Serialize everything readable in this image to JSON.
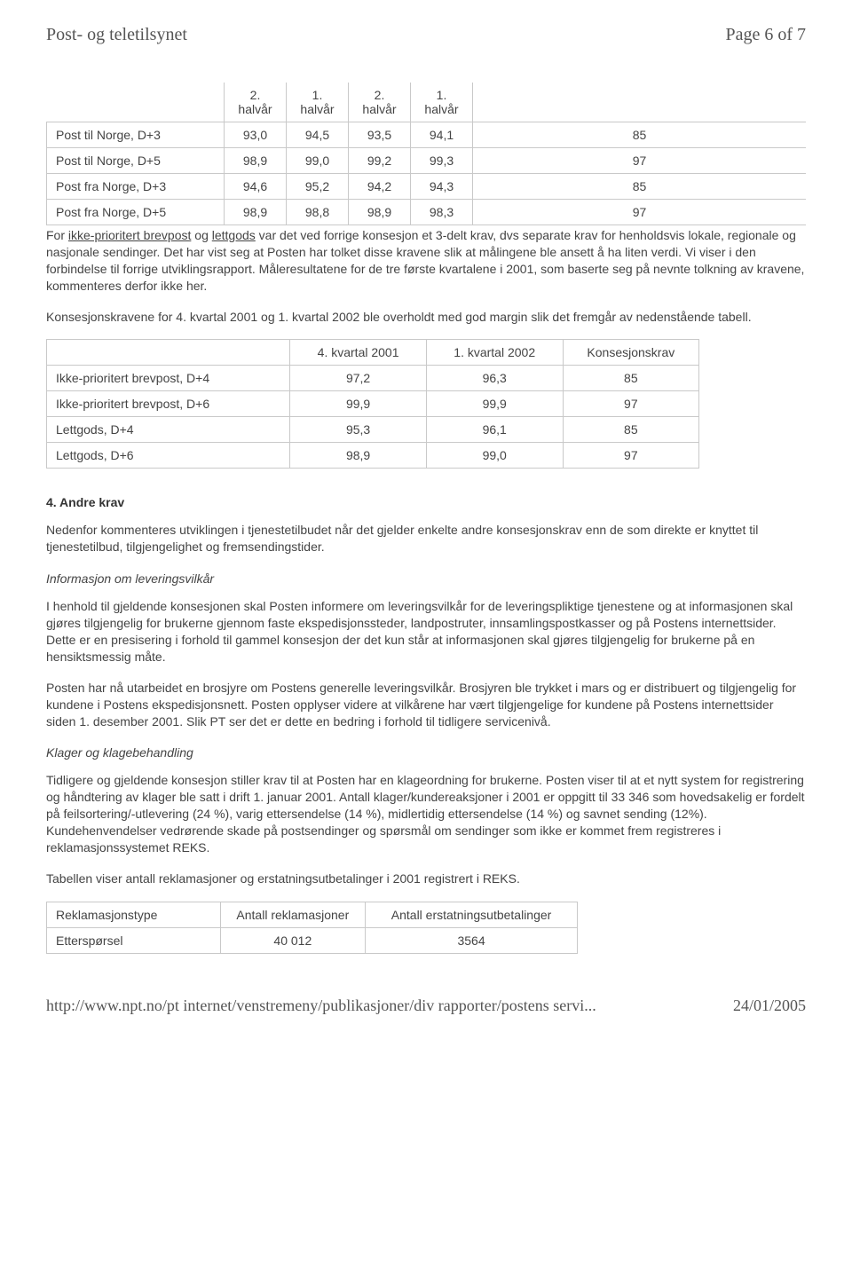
{
  "header": {
    "title": "Post- og teletilsynet",
    "page": "Page 6 of 7"
  },
  "table1": {
    "head": [
      "",
      "2. halvår",
      "1. halvår",
      "2. halvår",
      "1. halvår",
      ""
    ],
    "rows": [
      [
        "Post til Norge, D+3",
        "93,0",
        "94,5",
        "93,5",
        "94,1",
        "85"
      ],
      [
        "Post til Norge, D+5",
        "98,9",
        "99,0",
        "99,2",
        "99,3",
        "97"
      ],
      [
        "Post fra Norge, D+3",
        "94,6",
        "95,2",
        "94,2",
        "94,3",
        "85"
      ],
      [
        "Post fra Norge, D+5",
        "98,9",
        "98,8",
        "98,9",
        "98,3",
        "97"
      ]
    ]
  },
  "para1_a": "For ",
  "para1_u": "ikke-prioritert brevpost",
  "para1_b": " og ",
  "para1_u2": "lettgods",
  "para1_c": " var det ved forrige konsesjon et 3-delt krav, dvs separate krav for henholdsvis lokale, regionale og nasjonale sendinger. Det har vist seg at Posten har tolket disse kravene slik at målingene ble ansett å ha liten verdi. Vi viser i den forbindelse til forrige utviklingsrapport. Måleresultatene for de tre første kvartalene i 2001, som baserte seg på nevnte tolkning av kravene, kommenteres derfor ikke her.",
  "para2": "Konsesjonskravene for 4. kvartal 2001 og 1. kvartal 2002 ble overholdt med god margin slik det fremgår av nedenstående tabell.",
  "table2": {
    "head": [
      "",
      "4. kvartal 2001",
      "1. kvartal 2002",
      "Konsesjonskrav"
    ],
    "rows": [
      [
        "Ikke-prioritert brevpost, D+4",
        "97,2",
        "96,3",
        "85"
      ],
      [
        "Ikke-prioritert brevpost, D+6",
        "99,9",
        "99,9",
        "97"
      ],
      [
        "Lettgods, D+4",
        "95,3",
        "96,1",
        "85"
      ],
      [
        "Lettgods, D+6",
        "98,9",
        "99,0",
        "97"
      ]
    ]
  },
  "section4": {
    "heading": "4. Andre krav",
    "para": "Nedenfor kommenteres utviklingen i tjenestetilbudet når det gjelder enkelte andre konsesjonskrav enn de som direkte er knyttet til tjenestetilbud, tilgjengelighet og fremsendingstider.",
    "sub1_head": "Informasjon om leveringsvilkår",
    "sub1_p1": "I henhold til gjeldende konsesjonen skal Posten informere om leveringsvilkår for de leveringspliktige tjenestene og at informasjonen skal gjøres tilgjengelig for brukerne gjennom faste ekspedisjonssteder, landpostruter, innsamlingspostkasser og på Postens internettsider. Dette er en presisering i forhold til gammel konsesjon der det kun står at informasjonen skal gjøres tilgjengelig for brukerne på en hensiktsmessig måte.",
    "sub1_p2": "Posten har nå utarbeidet en brosjyre om Postens generelle leveringsvilkår. Brosjyren ble trykket i mars og er distribuert og tilgjengelig for kundene i Postens ekspedisjonsnett. Posten opplyser videre at vilkårene har vært tilgjengelige for kundene på Postens internettsider siden 1. desember 2001. Slik PT ser det er dette en bedring i forhold til tidligere servicenivå.",
    "sub2_head": "Klager og klagebehandling",
    "sub2_p1": "Tidligere og gjeldende konsesjon stiller krav til at Posten har en klageordning for brukerne. Posten viser til at et nytt system for registrering og håndtering av klager ble satt i drift 1. januar 2001. Antall klager/kundereaksjoner i 2001 er oppgitt til 33 346 som hovedsakelig er fordelt på feilsortering/-utlevering (24 %), varig ettersendelse (14 %), midlertidig ettersendelse (14 %) og savnet sending (12%). Kundehenvendelser vedrørende skade på postsendinger og spørsmål om sendinger som ikke er kommet frem registreres i reklamasjonssystemet REKS.",
    "sub2_p2": "Tabellen viser antall reklamasjoner og erstatningsutbetalinger i 2001 registrert i REKS."
  },
  "table3": {
    "head": [
      "Reklamasjonstype",
      "Antall reklamasjoner",
      "Antall erstatningsutbetalinger"
    ],
    "rows": [
      [
        "Etterspørsel",
        "40 012",
        "3564"
      ]
    ]
  },
  "footer": {
    "url": "http://www.npt.no/pt internet/venstremeny/publikasjoner/div rapporter/postens servi...",
    "date": "24/01/2005"
  }
}
